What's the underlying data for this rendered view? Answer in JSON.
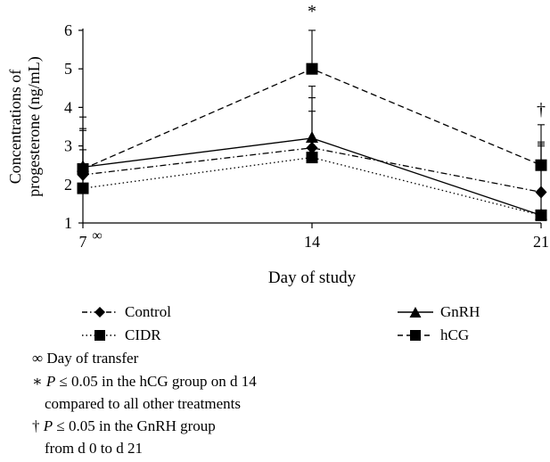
{
  "chart_data": {
    "type": "line",
    "title": "",
    "xlabel": "Day of study",
    "ylabel_lines": [
      "Concentrations of",
      "progesterone (ng/mL)"
    ],
    "x": [
      7,
      14,
      21
    ],
    "x_tick_labels": [
      "7",
      "14",
      "21"
    ],
    "x_tick_superscripts": [
      "∞",
      "",
      ""
    ],
    "ylim": [
      1,
      6
    ],
    "y_ticks": [
      1,
      2,
      3,
      4,
      5,
      6
    ],
    "grid": false,
    "legend_position": "bottom",
    "series": [
      {
        "name": "Control",
        "values": [
          2.25,
          2.95,
          1.8
        ],
        "error_plus": [
          1.2,
          1.3,
          1.3
        ],
        "marker": "diamond",
        "line": "dash-dot",
        "color": "#000000"
      },
      {
        "name": "CIDR",
        "values": [
          1.9,
          2.7,
          1.2
        ],
        "error_plus": [
          1.0,
          1.2,
          1.8
        ],
        "marker": "square",
        "line": "dotted",
        "color": "#000000"
      },
      {
        "name": "GnRH",
        "values": [
          2.45,
          3.2,
          1.2
        ],
        "error_plus": [
          1.3,
          1.35,
          1.85
        ],
        "marker": "triangle",
        "line": "solid",
        "color": "#000000"
      },
      {
        "name": "hCG",
        "values": [
          2.4,
          5.0,
          2.5
        ],
        "error_plus": [
          1.0,
          1.0,
          1.05
        ],
        "marker": "square",
        "line": "dashed",
        "color": "#000000"
      }
    ],
    "annotations": [
      {
        "text": "*",
        "x": 14,
        "y": 6.35
      },
      {
        "text": "†",
        "x": 21,
        "y": 3.8
      }
    ]
  },
  "notes": {
    "transfer": "∞ Day of transfer",
    "sig1_prefix": "∗",
    "sig1_p": "P",
    "sig1_rest": " ≤ 0.05 in the hCG group on d 14",
    "sig1_line2": "compared to all other treatments",
    "sig2_prefix": "†",
    "sig2_p": "P",
    "sig2_rest": " ≤ 0.05 in the GnRH group",
    "sig2_line2": "from d 0 to d 21"
  }
}
